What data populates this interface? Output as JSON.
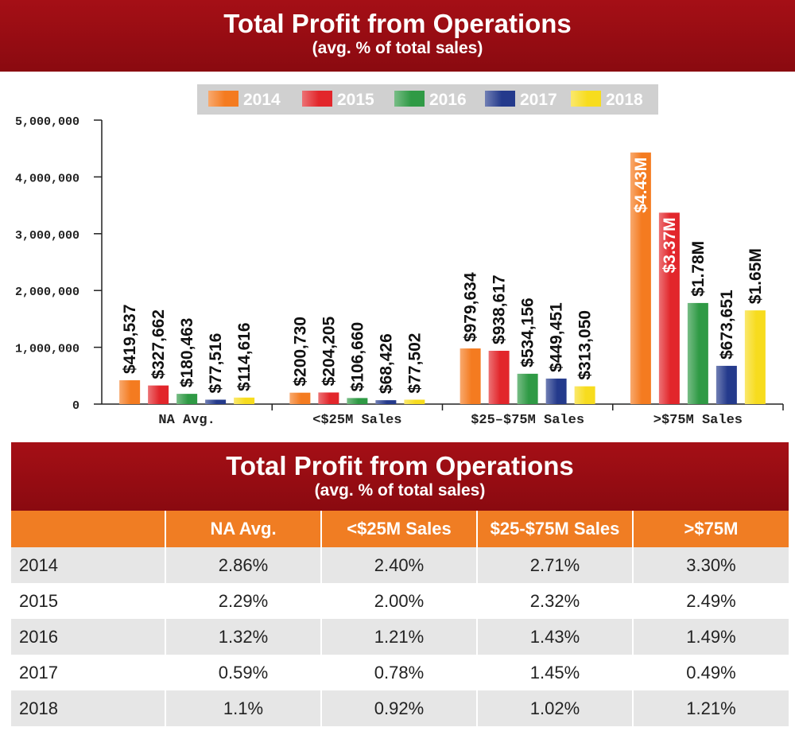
{
  "header": {
    "title": "Total Profit from Operations",
    "subtitle": "(avg. % of total sales)"
  },
  "chart_data": {
    "type": "bar",
    "title": "Total Profit from Operations",
    "subtitle": "(avg. % of total sales)",
    "categories": [
      "NA Avg.",
      "<$25M Sales",
      "$25–$75M Sales",
      ">$75M Sales"
    ],
    "series": [
      {
        "name": "2014",
        "color": "#f47b20",
        "values": [
          419537,
          200730,
          979634,
          4430000
        ],
        "labels": [
          "$419,537",
          "$200,730",
          "$979,634",
          "$4.43M"
        ]
      },
      {
        "name": "2015",
        "color": "#e2262b",
        "values": [
          327662,
          204205,
          938617,
          3370000
        ],
        "labels": [
          "$327,662",
          "$204,205",
          "$938,617",
          "$3.37M"
        ]
      },
      {
        "name": "2016",
        "color": "#2f9a45",
        "values": [
          180463,
          106660,
          534156,
          1780000
        ],
        "labels": [
          "$180,463",
          "$106,660",
          "$534,156",
          "$1.78M"
        ]
      },
      {
        "name": "2017",
        "color": "#243a8c",
        "values": [
          77516,
          68426,
          449451,
          673651
        ],
        "labels": [
          "$77,516",
          "$68,426",
          "$449,451",
          "$673,651"
        ]
      },
      {
        "name": "2018",
        "color": "#f7dc1e",
        "values": [
          114616,
          77502,
          313050,
          1650000
        ],
        "labels": [
          "$114,616",
          "$77,502",
          "$313,050",
          "$1.65M"
        ]
      }
    ],
    "ylim": [
      0,
      5000000
    ],
    "yticks": [
      "0",
      "1,000,000",
      "2,000,000",
      "3,000,000",
      "4,000,000",
      "5,000,000"
    ],
    "legend_position": "top",
    "grid": false
  },
  "table": {
    "title": "Total Profit from Operations",
    "subtitle": "(avg. % of total sales)",
    "columns": [
      "",
      "NA Avg.",
      "<$25M Sales",
      "$25-$75M Sales",
      ">$75M"
    ],
    "rows": [
      [
        "2014",
        "2.86%",
        "2.40%",
        "2.71%",
        "3.30%"
      ],
      [
        "2015",
        "2.29%",
        "2.00%",
        "2.32%",
        "2.49%"
      ],
      [
        "2016",
        "1.32%",
        "1.21%",
        "1.43%",
        "1.49%"
      ],
      [
        "2017",
        "0.59%",
        "0.78%",
        "1.45%",
        "0.49%"
      ],
      [
        "2018",
        "1.1%",
        "0.92%",
        "1.02%",
        "1.21%"
      ]
    ]
  }
}
